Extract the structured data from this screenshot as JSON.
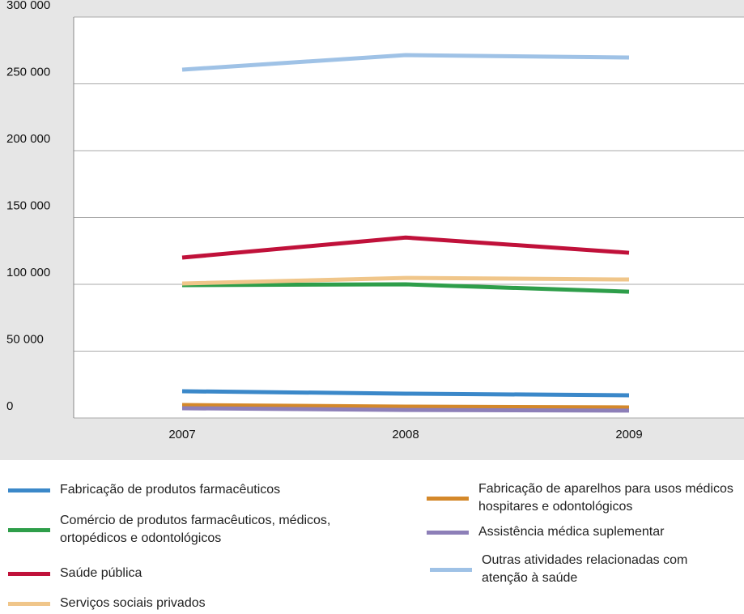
{
  "chart_data": {
    "type": "line",
    "categories": [
      "2007",
      "2008",
      "2009"
    ],
    "ylim": [
      0,
      300000
    ],
    "yticks": [
      0,
      {
        "value": 50000,
        "label": "50 000"
      },
      {
        "value": 100000,
        "label": "100 000"
      },
      {
        "value": 150000,
        "label": "150 000"
      },
      {
        "value": 200000,
        "label": "200 000"
      },
      {
        "value": 250000,
        "label": "250 000"
      },
      {
        "value": 300000,
        "label": "300 000"
      }
    ],
    "grid": true,
    "series": [
      {
        "name": "Fabricação de produtos farmacêuticos",
        "color": "#3b88c9",
        "values": [
          20000,
          18200,
          17000
        ]
      },
      {
        "name": "Comércio de produtos farmacêuticos, médicos, ortopédicos e odontológicos",
        "color": "#2e9e4a",
        "values": [
          99400,
          100000,
          94500
        ]
      },
      {
        "name": "Saúde pública",
        "color": "#c0113a",
        "values": [
          120000,
          135000,
          123600
        ]
      },
      {
        "name": "Serviços sociais privados",
        "color": "#f0c68a",
        "values": [
          100600,
          104800,
          103600
        ]
      },
      {
        "name": "Fabricação de aparelhos para usos médicos hospitares e odontológicos",
        "color": "#d4882a",
        "values": [
          9700,
          8500,
          7900
        ]
      },
      {
        "name": "Assistência médica suplementar",
        "color": "#8d7fb8",
        "values": [
          7300,
          6000,
          5500
        ]
      },
      {
        "name": "Outras atividades relacionadas com atenção à saúde",
        "color": "#9fc2e6",
        "values": [
          260600,
          271500,
          269700
        ]
      }
    ]
  }
}
